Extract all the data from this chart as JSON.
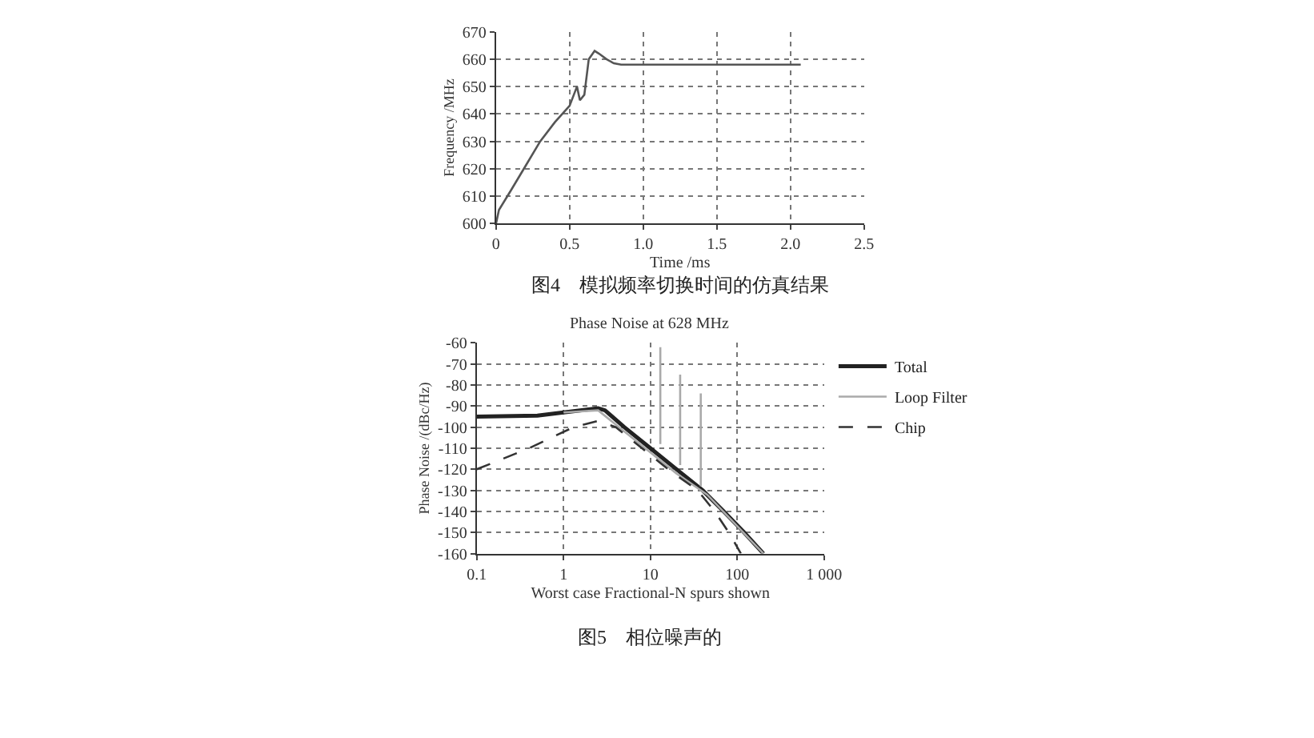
{
  "chart_data": [
    {
      "type": "line",
      "xlabel": "Time /ms",
      "ylabel": "Frequency /MHz",
      "annotations": [
        "图4　模拟频率切换时间的仿真结果"
      ],
      "x": [
        0,
        0.02,
        0.1,
        0.2,
        0.3,
        0.4,
        0.45,
        0.5,
        0.55,
        0.57,
        0.6,
        0.63,
        0.67,
        0.7,
        0.75,
        0.8,
        0.85,
        1.0,
        1.5,
        2.07
      ],
      "series": [
        {
          "color": "#555555",
          "values": [
            600,
            605,
            612,
            621,
            630,
            637,
            640,
            643,
            650,
            645,
            647,
            660,
            663,
            662,
            660,
            658.5,
            658,
            658,
            658,
            658
          ]
        }
      ],
      "xlim": [
        0,
        2.5
      ],
      "xticks": [
        0,
        0.5,
        {
          "value": 1,
          "label": "1.0"
        },
        1.5,
        {
          "value": 2,
          "label": "2.0"
        },
        2.5
      ],
      "ylim": [
        600,
        670
      ],
      "yticks": [
        600,
        610,
        620,
        630,
        640,
        650,
        660,
        670
      ],
      "grid": true,
      "line_style": "solid"
    },
    {
      "type": "line",
      "title": "Phase Noise at 628 MHz",
      "xlabel": "Worst case Fractional-N spurs shown",
      "ylabel": "Phase Noise /(dBc/Hz)",
      "annotations": [
        "图5　相位噪声的"
      ],
      "log": "x",
      "legend": "top right",
      "series": [
        {
          "name": "Total",
          "color": "#222222",
          "line_style": "solid",
          "x": [
            0.1,
            0.5,
            1,
            2.5,
            3,
            5,
            10,
            20,
            40,
            70,
            120,
            200
          ],
          "values": [
            -95,
            -94.5,
            -93,
            -91,
            -92,
            -100,
            -110,
            -120,
            -130,
            -140,
            -150,
            -160
          ]
        },
        {
          "name": "Loop Filter",
          "color": "#aaaaaa",
          "line_style": "solid",
          "x": [
            1,
            2.5,
            5,
            10,
            20,
            45,
            100,
            200
          ],
          "values": [
            -93,
            -92,
            -102,
            -112,
            -122,
            -132,
            -147,
            -160
          ]
        },
        {
          "name": "Chip",
          "color": "#333333",
          "line_style": "dashed",
          "x": [
            0.1,
            0.4,
            1.3,
            2.5,
            4,
            8,
            16,
            35,
            55,
            80,
            110
          ],
          "values": [
            -120,
            -110,
            -100,
            -97,
            -100,
            -110,
            -120,
            -130,
            -140,
            -150,
            -160
          ]
        },
        {
          "color": "#aaaaaa",
          "line_style": "solid",
          "x": [
            13,
            13
          ],
          "values": [
            -108,
            -62
          ]
        },
        {
          "color": "#aaaaaa",
          "line_style": "solid",
          "x": [
            22,
            22
          ],
          "values": [
            -118,
            -75
          ]
        },
        {
          "color": "#aaaaaa",
          "line_style": "solid",
          "x": [
            38,
            38
          ],
          "values": [
            -128,
            -84
          ]
        }
      ],
      "xlim": [
        0.1,
        1000
      ],
      "xticks": [
        0.1,
        1,
        10,
        100,
        {
          "value": 1000,
          "label": "1 000"
        }
      ],
      "ylim": [
        -160,
        -60
      ],
      "yticks": [
        -160,
        -150,
        -140,
        -130,
        -120,
        -110,
        -100,
        -90,
        -80,
        -70,
        -60
      ],
      "grid": true
    }
  ]
}
